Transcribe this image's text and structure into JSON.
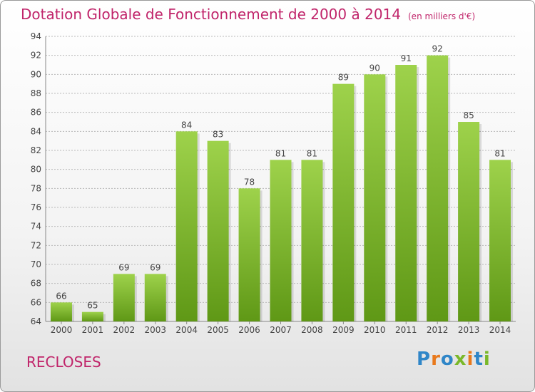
{
  "header": {
    "title": "Dotation Globale de Fonctionnement de 2000 à 2014",
    "unit": "(en milliers d'€)"
  },
  "commune": "RECLOSES",
  "logo": {
    "text": "Proxiti",
    "letters": [
      "P",
      "r",
      "o",
      "x",
      "i",
      "t",
      "i"
    ],
    "colors": [
      "#2f86c8",
      "#e8791c",
      "#2f86c8",
      "#7ab829",
      "#e8791c",
      "#2f86c8",
      "#7ab829"
    ]
  },
  "colors": {
    "bar_light": "#9ed24b",
    "bar_dark": "#5f9816",
    "title": "#c0246a",
    "grid": "#b9b9b9"
  },
  "chart_data": {
    "type": "bar",
    "title": "Dotation Globale de Fonctionnement de 2000 à 2014",
    "categories": [
      "2000",
      "2001",
      "2002",
      "2003",
      "2004",
      "2005",
      "2006",
      "2007",
      "2008",
      "2009",
      "2010",
      "2011",
      "2012",
      "2013",
      "2014"
    ],
    "values": [
      66,
      65,
      69,
      69,
      84,
      83,
      78,
      81,
      81,
      89,
      90,
      91,
      92,
      85,
      81
    ],
    "ylim": [
      64,
      94
    ],
    "yticks": [
      64,
      66,
      68,
      70,
      72,
      74,
      76,
      78,
      80,
      82,
      84,
      86,
      88,
      90,
      92,
      94
    ],
    "grid": true,
    "data_labels": true
  }
}
